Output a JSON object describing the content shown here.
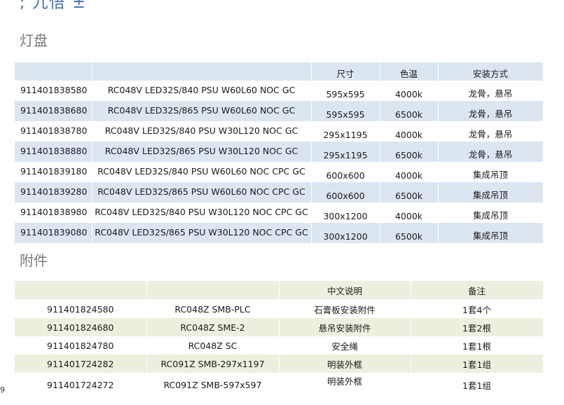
{
  "header_fragment": "; 九悟 ±",
  "lights": {
    "title": "灯盘",
    "headers": [
      "",
      "",
      "尺寸",
      "色温",
      "安装方式"
    ],
    "rows": [
      {
        "code": "911401838580",
        "model": "RC048V LED32S/840 PSU W60L60 NOC GC",
        "size": "595x595",
        "temp": "4000k",
        "mount": "龙骨，悬吊"
      },
      {
        "code": "911401838680",
        "model": "RC048V LED32S/865 PSU W60L60 NOC GC",
        "size": "595x595",
        "temp": "6500k",
        "mount": "龙骨，悬吊"
      },
      {
        "code": "911401838780",
        "model": "RC048V LED32S/840 PSU W30L120 NOC GC",
        "size": "295x1195",
        "temp": "4000k",
        "mount": "龙骨，悬吊"
      },
      {
        "code": "911401838880",
        "model": "RC048V LED32S/865 PSU W30L120 NOC GC",
        "size": "295x1195",
        "temp": "6500k",
        "mount": "龙骨，悬吊"
      },
      {
        "code": "911401839180",
        "model": "RC048V LED32S/840 PSU W60L60 NOC CPC GC",
        "size": "600x600",
        "temp": "4000k",
        "mount": "集成吊顶"
      },
      {
        "code": "911401839280",
        "model": "RC048V LED32S/865 PSU W60L60 NOC CPC GC",
        "size": "600x600",
        "temp": "6500k",
        "mount": "集成吊顶"
      },
      {
        "code": "911401838980",
        "model": "RC048V LED32S/840 PSU W30L120 NOC CPC GC",
        "size": "300x1200",
        "temp": "4000k",
        "mount": "集成吊顶"
      },
      {
        "code": "911401839080",
        "model": "RC048V LED32S/865 PSU W30L120 NOC CPC GC",
        "size": "300x1200",
        "temp": "6500k",
        "mount": "集成吊顶"
      }
    ]
  },
  "accessories": {
    "title": "附件",
    "headers": [
      "",
      "",
      "中文说明",
      "备注"
    ],
    "rows": [
      {
        "code": "911401824580",
        "model": "RC048Z SMB-PLC",
        "desc": "石膏板安装附件",
        "note": "1套4个"
      },
      {
        "code": "911401824680",
        "model": "RC048Z SME-2",
        "desc": "悬吊安装附件",
        "note": "1套2根"
      },
      {
        "code": "911401824780",
        "model": "RC048Z SC",
        "desc": "安全绳",
        "note": "1套1根"
      },
      {
        "code": "911401724282",
        "model": "RC091Z SMB-297x1197",
        "desc": "明装外框",
        "note": "1套1组"
      },
      {
        "code": "911401724272",
        "model": "RC091Z SMB-597x597",
        "desc": "明装外框",
        "note": "1套1组"
      }
    ]
  },
  "page_number": "9"
}
